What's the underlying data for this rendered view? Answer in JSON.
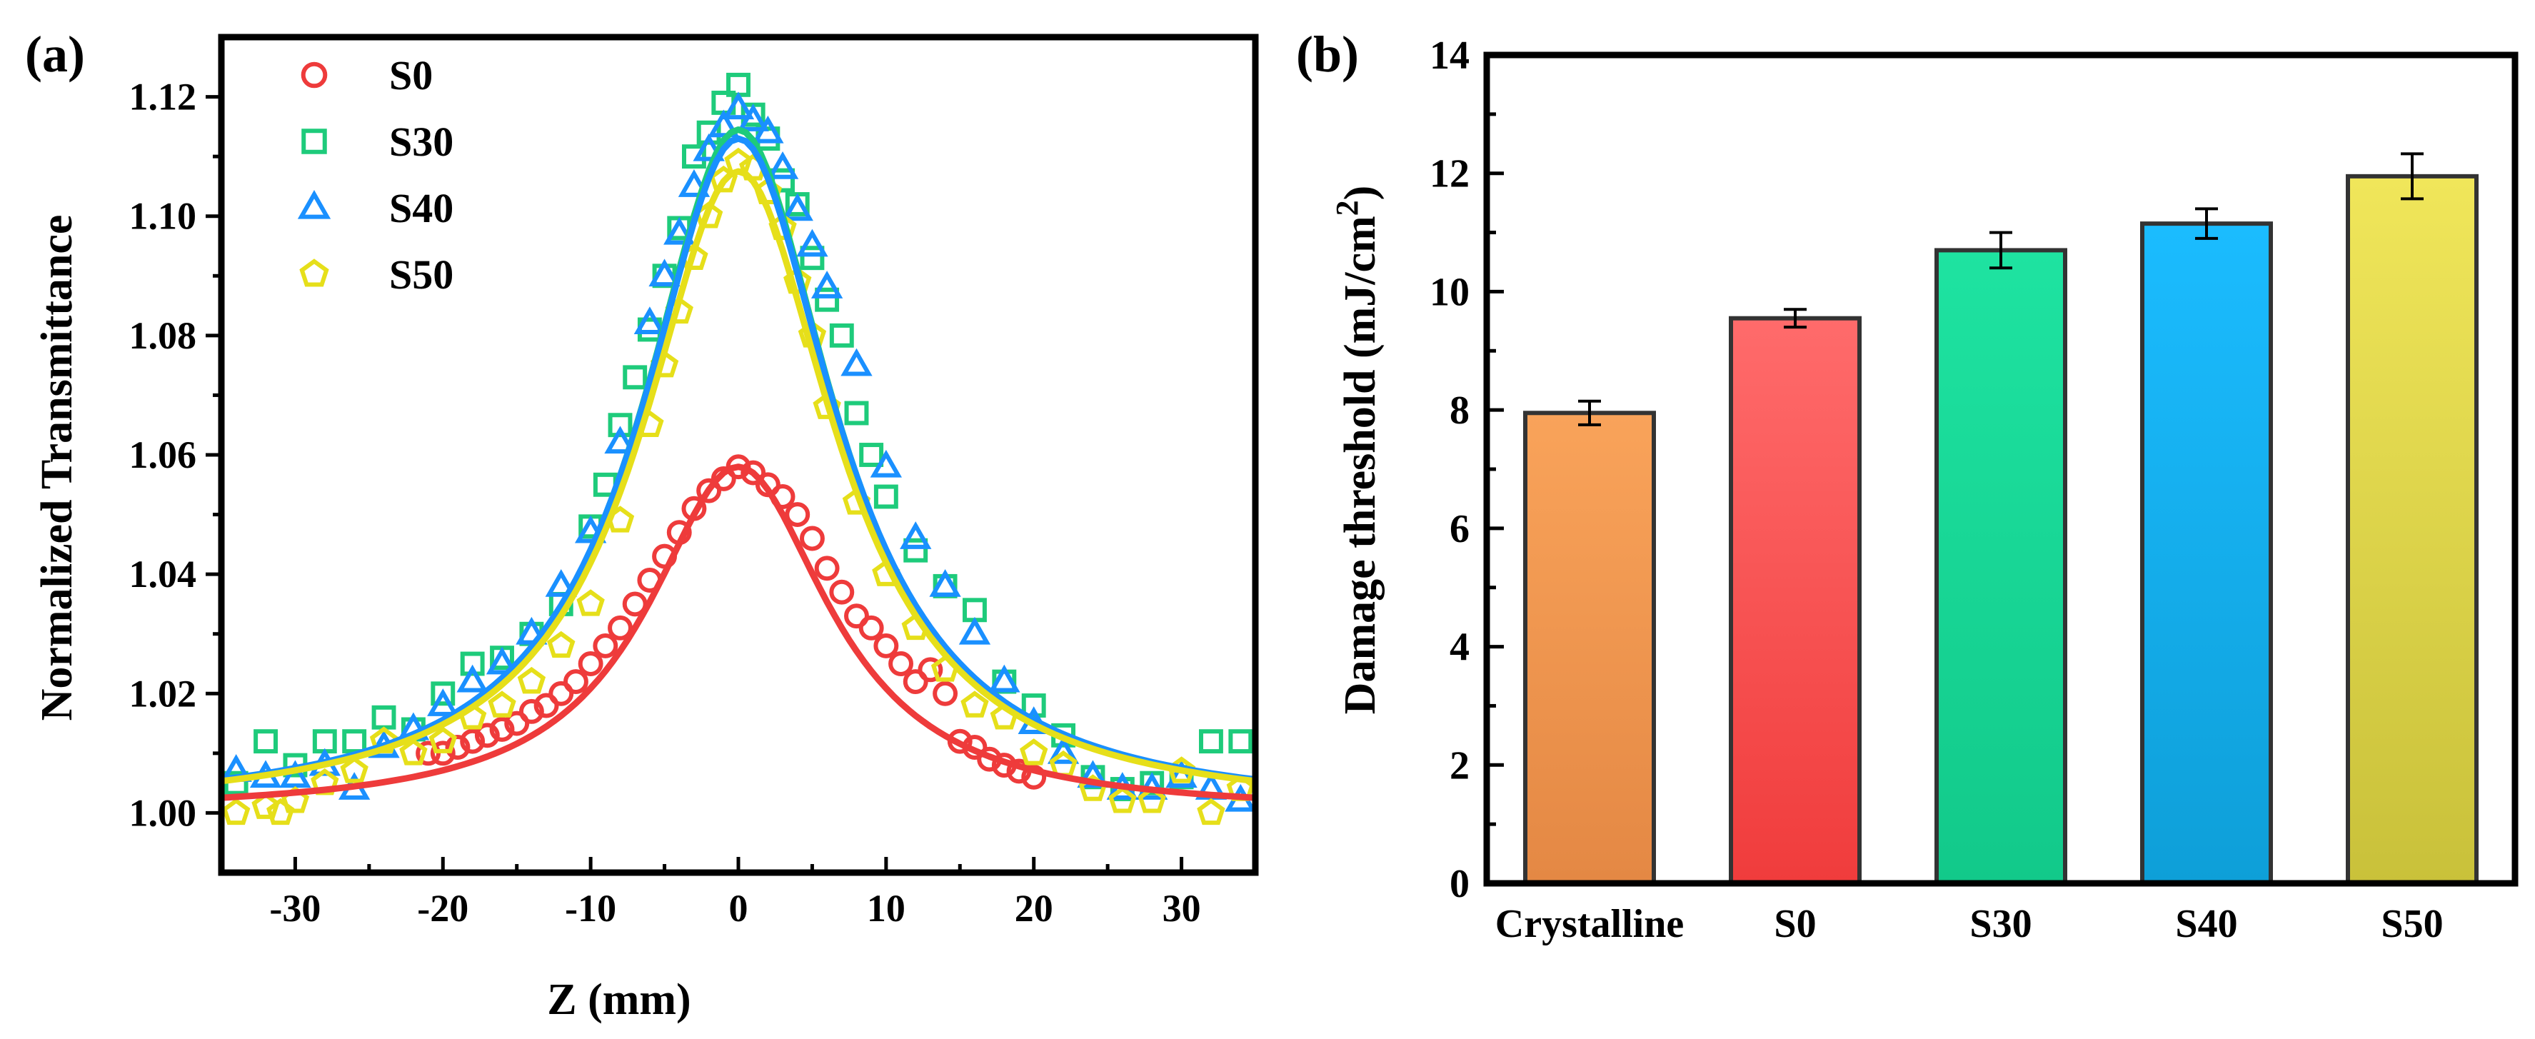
{
  "chart_data": [
    {
      "type": "scatter",
      "panel_label": "(a)",
      "xlabel": "Z (mm)",
      "ylabel": "Normalized Transmittance",
      "xlim": [
        -35,
        35
      ],
      "ylim": [
        0.99,
        1.13
      ],
      "xticks": [
        -30,
        -20,
        -10,
        0,
        10,
        20,
        30
      ],
      "xtick_labels": [
        "-30",
        "-20",
        "-10",
        "0",
        "10",
        "20",
        "30"
      ],
      "yticks": [
        1.0,
        1.02,
        1.04,
        1.06,
        1.08,
        1.1,
        1.12
      ],
      "ytick_labels": [
        "1.00",
        "1.02",
        "1.04",
        "1.06",
        "1.08",
        "1.10",
        "1.12"
      ],
      "legend_position": "top-left",
      "series": [
        {
          "name": "S0",
          "marker": "circle",
          "color": "#ee3b3b",
          "fit_peak": 0.058,
          "fit_width": 7.5,
          "x": [
            -21,
            -20,
            -19,
            -18,
            -17,
            -16,
            -15,
            -14,
            -13,
            -12,
            -11,
            -10,
            -9,
            -8,
            -7,
            -6,
            -5,
            -4,
            -3,
            -2,
            -1,
            0,
            1,
            2,
            3,
            4,
            5,
            6,
            7,
            8,
            9,
            10,
            11,
            12,
            13,
            14,
            15,
            16,
            17,
            18,
            19,
            20
          ],
          "y": [
            1.01,
            1.01,
            1.011,
            1.012,
            1.013,
            1.014,
            1.015,
            1.017,
            1.018,
            1.02,
            1.022,
            1.025,
            1.028,
            1.031,
            1.035,
            1.039,
            1.043,
            1.047,
            1.051,
            1.054,
            1.056,
            1.058,
            1.057,
            1.055,
            1.053,
            1.05,
            1.046,
            1.041,
            1.037,
            1.033,
            1.031,
            1.028,
            1.025,
            1.022,
            1.024,
            1.02,
            1.012,
            1.011,
            1.009,
            1.008,
            1.007,
            1.006
          ]
        },
        {
          "name": "S30",
          "marker": "square",
          "color": "#1ecb7b",
          "fit_peak": 0.1145,
          "fit_width": 7.9,
          "x": [
            -34,
            -32,
            -30,
            -28,
            -26,
            -24,
            -22,
            -20,
            -18,
            -16,
            -14,
            -12,
            -10,
            -9,
            -8,
            -7,
            -6,
            -5,
            -4,
            -3,
            -2,
            -1,
            0,
            1,
            2,
            3,
            4,
            5,
            6,
            7,
            8,
            9,
            10,
            12,
            14,
            16,
            18,
            20,
            22,
            24,
            26,
            28,
            30,
            32,
            34
          ],
          "y": [
            1.005,
            1.012,
            1.008,
            1.012,
            1.012,
            1.016,
            1.014,
            1.02,
            1.025,
            1.026,
            1.03,
            1.035,
            1.048,
            1.055,
            1.065,
            1.073,
            1.081,
            1.09,
            1.098,
            1.11,
            1.114,
            1.119,
            1.122,
            1.117,
            1.113,
            1.106,
            1.102,
            1.093,
            1.086,
            1.08,
            1.067,
            1.06,
            1.053,
            1.044,
            1.038,
            1.034,
            1.022,
            1.018,
            1.013,
            1.006,
            1.004,
            1.005,
            1.006,
            1.012,
            1.012
          ]
        },
        {
          "name": "S40",
          "marker": "triangle",
          "color": "#1a90ff",
          "fit_peak": 0.113,
          "fit_width": 8.0,
          "x": [
            -34,
            -32,
            -30,
            -28,
            -26,
            -24,
            -22,
            -20,
            -18,
            -16,
            -14,
            -12,
            -10,
            -8,
            -6,
            -5,
            -4,
            -3,
            -2,
            -1,
            0,
            1,
            2,
            3,
            4,
            5,
            6,
            8,
            10,
            12,
            14,
            16,
            18,
            20,
            22,
            24,
            26,
            28,
            30,
            32,
            34
          ],
          "y": [
            1.007,
            1.006,
            1.006,
            1.008,
            1.004,
            1.011,
            1.014,
            1.018,
            1.022,
            1.025,
            1.03,
            1.038,
            1.047,
            1.062,
            1.082,
            1.09,
            1.097,
            1.105,
            1.111,
            1.115,
            1.118,
            1.116,
            1.114,
            1.108,
            1.101,
            1.095,
            1.088,
            1.075,
            1.058,
            1.046,
            1.038,
            1.03,
            1.022,
            1.015,
            1.01,
            1.006,
            1.004,
            1.004,
            1.006,
            1.004,
            1.002
          ]
        },
        {
          "name": "S50",
          "marker": "pentagon",
          "color": "#e6df1a",
          "fit_peak": 0.1075,
          "fit_width": 8.0,
          "x": [
            -34,
            -32,
            -31,
            -30,
            -28,
            -26,
            -24,
            -22,
            -20,
            -18,
            -16,
            -14,
            -12,
            -10,
            -8,
            -6,
            -5,
            -4,
            -3,
            -2,
            -1,
            0,
            1,
            2,
            3,
            4,
            5,
            6,
            8,
            10,
            12,
            14,
            16,
            18,
            20,
            22,
            24,
            26,
            28,
            30,
            32,
            34
          ],
          "y": [
            1.0,
            1.001,
            1.0,
            1.002,
            1.005,
            1.007,
            1.012,
            1.01,
            1.012,
            1.016,
            1.018,
            1.022,
            1.028,
            1.035,
            1.049,
            1.065,
            1.075,
            1.084,
            1.093,
            1.1,
            1.106,
            1.109,
            1.108,
            1.104,
            1.098,
            1.089,
            1.08,
            1.068,
            1.052,
            1.04,
            1.031,
            1.024,
            1.018,
            1.016,
            1.01,
            1.008,
            1.004,
            1.002,
            1.002,
            1.007,
            1.0,
            1.004
          ]
        }
      ]
    },
    {
      "type": "bar",
      "panel_label": "(b)",
      "ylabel_main": "Damage threshold (mJ/cm",
      "ylabel_sup": "2",
      "ylabel_close": ")",
      "categories": [
        "Crystalline",
        "S0",
        "S30",
        "S40",
        "S50"
      ],
      "values": [
        7.95,
        9.55,
        10.7,
        11.15,
        11.95
      ],
      "errors": [
        0.2,
        0.15,
        0.3,
        0.25,
        0.38
      ],
      "colors": [
        [
          "#f9a35a",
          "#e48844"
        ],
        [
          "#ff6b6b",
          "#f03c3c"
        ],
        [
          "#1ee3a1",
          "#12c98a"
        ],
        [
          "#1bbcff",
          "#0e9fd8"
        ],
        [
          "#f0e65a",
          "#c9c13a"
        ]
      ],
      "ylim": [
        0,
        14
      ],
      "yticks": [
        0,
        2,
        4,
        6,
        8,
        10,
        12,
        14
      ],
      "ytick_labels": [
        "0",
        "2",
        "4",
        "6",
        "8",
        "10",
        "12",
        "14"
      ]
    }
  ]
}
